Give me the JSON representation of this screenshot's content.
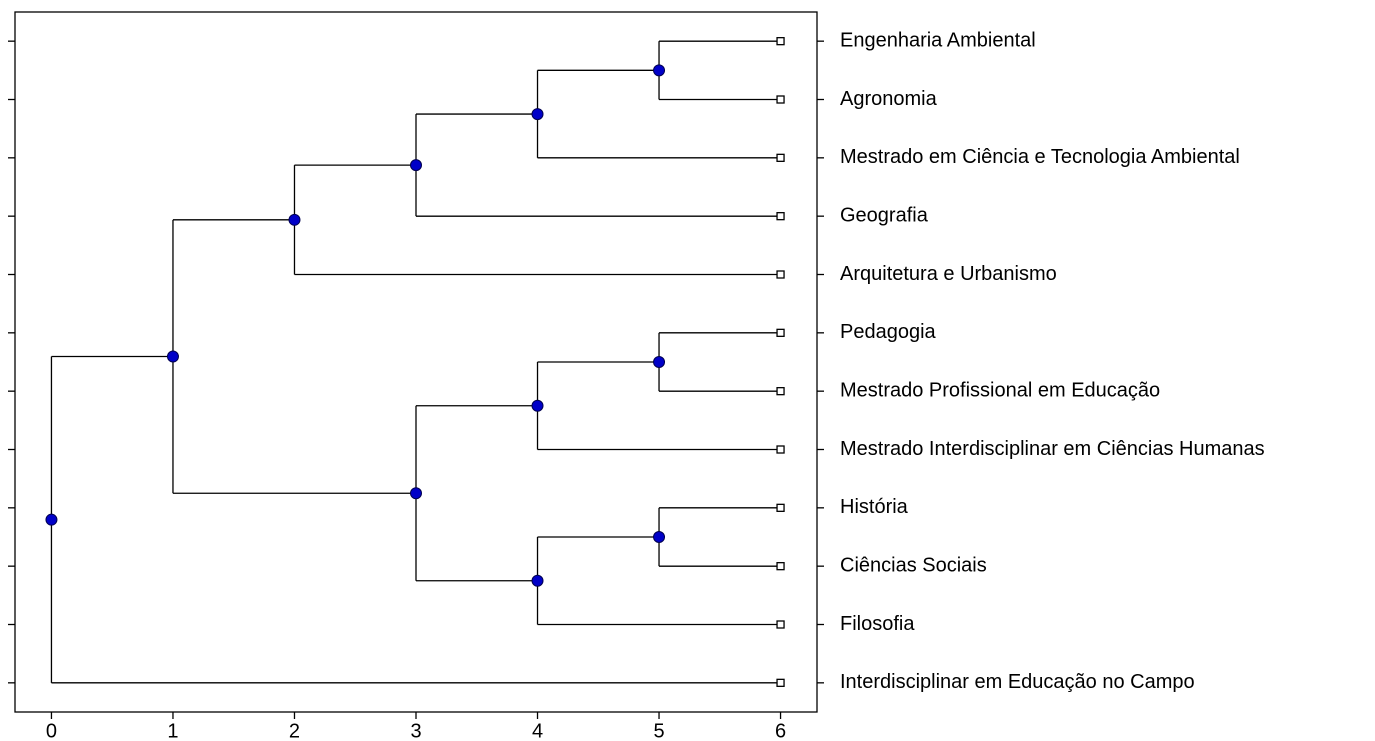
{
  "chart_data": {
    "type": "dendrogram",
    "xlim": [
      -0.3,
      6.3
    ],
    "xticks": [
      0,
      1,
      2,
      3,
      4,
      5,
      6
    ],
    "node_color": "#0000c8",
    "line_color": "#000000",
    "tree": {
      "height": 0,
      "children": [
        {
          "height": 1,
          "children": [
            {
              "height": 2,
              "children": [
                {
                  "height": 3,
                  "children": [
                    {
                      "height": 4,
                      "children": [
                        {
                          "height": 5,
                          "children": [
                            {
                              "height": 6,
                              "label": "Engenharia Ambiental"
                            },
                            {
                              "height": 6,
                              "label": "Agronomia"
                            }
                          ]
                        },
                        {
                          "height": 6,
                          "label": "Mestrado em Ciência e Tecnologia Ambiental"
                        }
                      ]
                    },
                    {
                      "height": 6,
                      "label": "Geografia"
                    }
                  ]
                },
                {
                  "height": 6,
                  "label": "Arquitetura e Urbanismo"
                }
              ]
            },
            {
              "height": 3,
              "children": [
                {
                  "height": 4,
                  "children": [
                    {
                      "height": 5,
                      "children": [
                        {
                          "height": 6,
                          "label": "Pedagogia"
                        },
                        {
                          "height": 6,
                          "label": "Mestrado Profissional em Educação"
                        }
                      ]
                    },
                    {
                      "height": 6,
                      "label": "Mestrado Interdisciplinar em Ciências Humanas"
                    }
                  ]
                },
                {
                  "height": 4,
                  "children": [
                    {
                      "height": 5,
                      "children": [
                        {
                          "height": 6,
                          "label": "História"
                        },
                        {
                          "height": 6,
                          "label": "Ciências Sociais"
                        }
                      ]
                    },
                    {
                      "height": 6,
                      "label": "Filosofia"
                    }
                  ]
                }
              ]
            }
          ]
        },
        {
          "height": 6,
          "label": "Interdisciplinar em Educação no Campo"
        }
      ]
    }
  }
}
